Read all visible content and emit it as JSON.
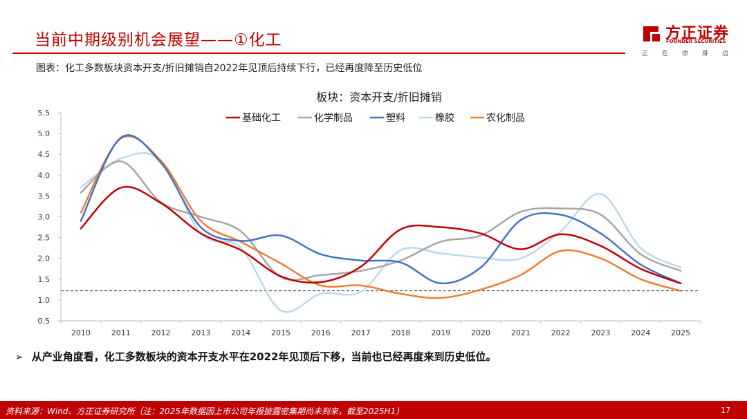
{
  "header": {
    "title": "当前中期级别机会展望——①化工",
    "caption": "图表：化工多数板块资本开支/折旧摊销自2022年见顶后持续下行，已经再度降至历史低位"
  },
  "logo": {
    "name_cn": "方正证券",
    "name_en": "FOUNDER SECURITIES",
    "slogan": "正在你身边",
    "color": "#c00000"
  },
  "chart_data": {
    "type": "line",
    "title": "板块：资本开支/折旧摊销",
    "categories": [
      "2010",
      "2011",
      "2012",
      "2013",
      "2014",
      "2015",
      "2016",
      "2017",
      "2018",
      "2019",
      "2020",
      "2021",
      "2022",
      "2023",
      "2024",
      "2025"
    ],
    "ylim": [
      0.5,
      5.5
    ],
    "yticks": [
      "0.5",
      "1.0",
      "1.5",
      "2.0",
      "2.5",
      "3.0",
      "3.5",
      "4.0",
      "4.5",
      "5.0",
      "5.5"
    ],
    "reference_line": 1.22,
    "legend_position": "top",
    "series": [
      {
        "name": "基础化工",
        "color": "#c00000",
        "values": [
          2.72,
          3.7,
          3.33,
          2.6,
          2.2,
          1.57,
          1.43,
          1.8,
          2.7,
          2.75,
          2.6,
          2.22,
          2.58,
          2.3,
          1.75,
          1.4
        ]
      },
      {
        "name": "化学制品",
        "color": "#a6a6a6",
        "values": [
          3.58,
          4.33,
          3.35,
          3.0,
          2.65,
          1.55,
          1.6,
          1.7,
          1.95,
          2.4,
          2.55,
          3.12,
          3.2,
          3.05,
          2.1,
          1.7
        ]
      },
      {
        "name": "塑料",
        "color": "#4472c4",
        "values": [
          2.9,
          4.9,
          4.3,
          2.75,
          2.42,
          2.55,
          2.1,
          1.95,
          1.9,
          1.4,
          1.78,
          2.92,
          3.05,
          2.6,
          1.85,
          1.4
        ]
      },
      {
        "name": "橡胶",
        "color": "#bdd7ee",
        "values": [
          3.7,
          4.4,
          4.35,
          2.6,
          2.25,
          0.75,
          1.15,
          1.2,
          2.2,
          2.12,
          2.02,
          2.0,
          2.65,
          3.55,
          2.25,
          1.78
        ]
      },
      {
        "name": "农化制品",
        "color": "#ed7d31",
        "values": [
          3.1,
          4.88,
          4.35,
          2.9,
          2.4,
          1.88,
          1.35,
          1.35,
          1.15,
          1.05,
          1.25,
          1.6,
          2.18,
          2.0,
          1.5,
          1.22
        ]
      }
    ]
  },
  "bullet": {
    "arrow": "➢",
    "text": "从产业角度看，化工多数板块的资本开支水平在2022年见顶后下移，当前也已经再度来到历史低位。"
  },
  "footer": {
    "source": "资料来源：Wind、方正证券研究所（注：2025年数据因上市公司年报披露密集期尚未到来，截至2025H1）",
    "page_number": "17"
  }
}
